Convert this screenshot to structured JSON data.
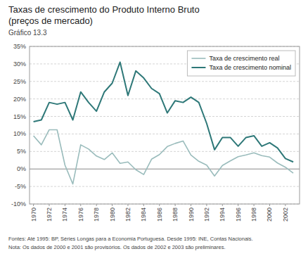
{
  "chart_data": {
    "type": "line",
    "title": [
      "Taxas de crescimento do Produto Interno Bruto",
      "(preços de mercado)"
    ],
    "subtitle": "Gráfico 13.3",
    "annotations": [
      "Fontes: Até 1995: BP, Séries Longas para a Economia Portuguesa. Desde 1995: INE, Contas Nacionais.",
      "Nota: Os dados de 2000 e 2001 são provisórios. Os dados de 2002 e 2003 são preliminares."
    ],
    "x": [
      1970,
      1971,
      1972,
      1973,
      1974,
      1975,
      1976,
      1977,
      1978,
      1979,
      1980,
      1981,
      1982,
      1983,
      1984,
      1985,
      1986,
      1987,
      1988,
      1989,
      1990,
      1991,
      1992,
      1993,
      1994,
      1995,
      1996,
      1997,
      1998,
      1999,
      2000,
      2001,
      2002,
      2003
    ],
    "series": [
      {
        "name": "Taxa de crescimento real",
        "color": "#9abcbc",
        "values": [
          9.5,
          6.9,
          11.2,
          11.2,
          1.1,
          -4.3,
          6.9,
          5.7,
          3.7,
          2.7,
          4.6,
          1.6,
          2.0,
          -0.2,
          -1.6,
          2.8,
          4.1,
          6.4,
          7.3,
          8.0,
          4.0,
          2.2,
          1.1,
          -2.0,
          1.0,
          2.3,
          3.5,
          4.0,
          4.6,
          3.8,
          3.4,
          1.7,
          0.5,
          -1.2
        ]
      },
      {
        "name": "Taxa de crescimento nominal",
        "color": "#2e7878",
        "values": [
          13.5,
          14.0,
          19.0,
          18.5,
          19.0,
          14.0,
          22.0,
          19.0,
          16.5,
          22.0,
          24.5,
          30.5,
          21.0,
          28.0,
          26.0,
          23.0,
          21.5,
          16.0,
          19.5,
          19.0,
          20.5,
          19.0,
          13.0,
          5.5,
          9.0,
          9.0,
          6.5,
          9.0,
          9.5,
          6.5,
          7.5,
          6.0,
          3.0,
          2.0
        ]
      }
    ],
    "xlim": [
      1969.5,
      2003.8
    ],
    "xticks": [
      1970,
      1972,
      1974,
      1976,
      1978,
      1980,
      1982,
      1984,
      1986,
      1988,
      1990,
      1992,
      1994,
      1996,
      1998,
      2000,
      2002
    ],
    "ylim": [
      -10,
      35
    ],
    "yticks": [
      {
        "value": -10,
        "label": "-10%"
      },
      {
        "value": -5,
        "label": "-5%"
      },
      {
        "value": 0,
        "label": "0%"
      },
      {
        "value": 5,
        "label": "5%"
      },
      {
        "value": 10,
        "label": "10%"
      },
      {
        "value": 15,
        "label": "15%"
      },
      {
        "value": 20,
        "label": "20%"
      },
      {
        "value": 25,
        "label": "25%"
      },
      {
        "value": 30,
        "label": "30%"
      },
      {
        "value": 35,
        "label": "35%"
      }
    ],
    "grid": true,
    "legend": "upper right"
  }
}
